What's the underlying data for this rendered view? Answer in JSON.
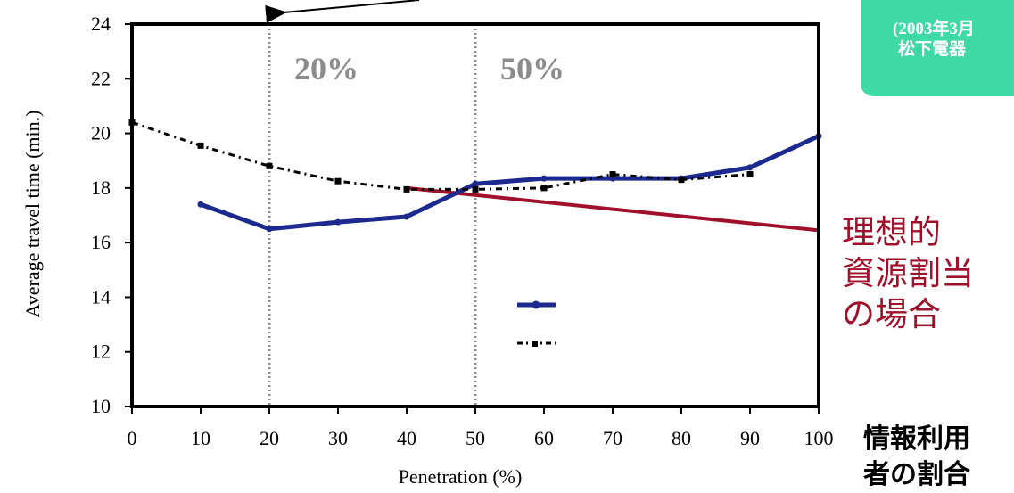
{
  "chart_data": {
    "type": "line",
    "title": "",
    "xlabel": "Penetration (%)",
    "ylabel": "Average travel time (min.)",
    "xlim": [
      0,
      100
    ],
    "ylim": [
      10,
      24
    ],
    "x_ticks": [
      "0",
      "10",
      "20",
      "30",
      "40",
      "50",
      "60",
      "70",
      "80",
      "90",
      "100"
    ],
    "y_ticks": [
      "10",
      "12",
      "14",
      "16",
      "18",
      "20",
      "22",
      "24"
    ],
    "grid": false,
    "series": [
      {
        "style": "solid",
        "color": "#1c2a8f",
        "x": [
          10,
          20,
          30,
          40,
          50,
          60,
          70,
          80,
          90,
          100
        ],
        "y": [
          17.4,
          16.5,
          16.75,
          16.95,
          18.15,
          18.35,
          18.35,
          18.35,
          18.75,
          19.9
        ]
      },
      {
        "style": "dashdot",
        "color": "#000000",
        "x": [
          0,
          10,
          20,
          30,
          40,
          50,
          60,
          70,
          80,
          90
        ],
        "y": [
          20.4,
          19.55,
          18.8,
          18.25,
          17.95,
          17.95,
          18.0,
          18.5,
          18.3,
          18.5
        ]
      }
    ],
    "reference_lines": [
      {
        "x": 20,
        "label": "20%"
      },
      {
        "x": 50,
        "label": "50%"
      }
    ],
    "ideal_line": {
      "x": [
        40,
        100
      ],
      "y": [
        18.0,
        16.45
      ],
      "color": "#a0102a"
    },
    "colors": {
      "series_solid": "#1c2a8f",
      "series_dashed": "#000000",
      "ideal": "#a0102a",
      "ref_line": "#8c8c8c",
      "badge": "#3fd9a6"
    }
  },
  "annotations": {
    "ideal_label": [
      "理想的",
      "資源割当",
      "の場合"
    ],
    "x_note": [
      "情報利用",
      "者の割合"
    ],
    "badge": [
      "(2003年3月",
      "松下電器"
    ]
  }
}
